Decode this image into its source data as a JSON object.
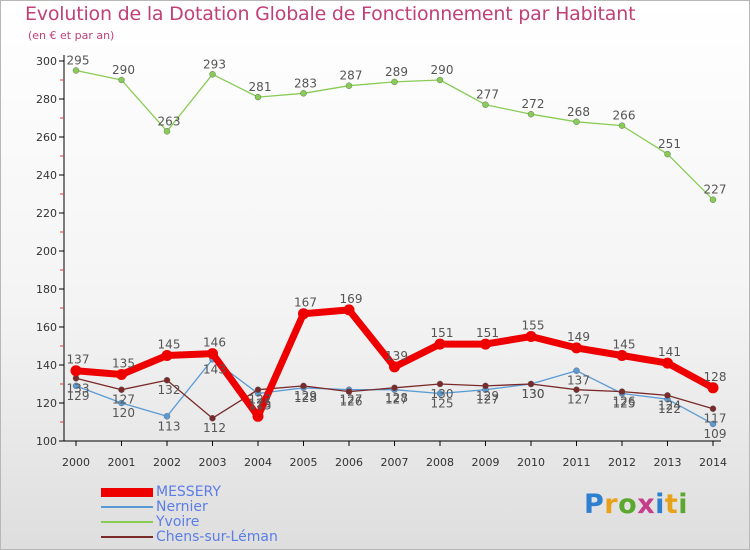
{
  "title": "Evolution de la Dotation Globale de Fonctionnement par Habitant",
  "subtitle": "(en € et par an)",
  "logo": {
    "text": "Proxiti",
    "colors": [
      "#2e7fd0",
      "#e8a21a",
      "#5aa82e",
      "#c63d8c",
      "#2e7fd0",
      "#e8a21a",
      "#5aa82e"
    ]
  },
  "chart_data": {
    "type": "line",
    "x": [
      "2000",
      "2001",
      "2002",
      "2003",
      "2004",
      "2005",
      "2006",
      "2007",
      "2008",
      "2009",
      "2010",
      "2011",
      "2012",
      "2013",
      "2014"
    ],
    "ylim": [
      100,
      300
    ],
    "yticks": [
      "100",
      "120",
      "140",
      "160",
      "180",
      "200",
      "220",
      "240",
      "260",
      "280",
      "300"
    ],
    "grid": false,
    "legend_position": "bottom-left",
    "series": [
      {
        "name": "Yvoire",
        "color": "#88cc55",
        "values": [
          295,
          290,
          263,
          293,
          281,
          283,
          287,
          289,
          290,
          277,
          272,
          268,
          266,
          251,
          227
        ]
      },
      {
        "name": "Nernier",
        "color": "#5b9bd5",
        "values": [
          129,
          120,
          113,
          143,
          125,
          128,
          127,
          127,
          125,
          127,
          130,
          137,
          125,
          122,
          109
        ]
      },
      {
        "name": "Chens-sur-Léman",
        "color": "#7a2a2a",
        "values": [
          133,
          127,
          132,
          112,
          127,
          129,
          126,
          128,
          130,
          129,
          130,
          127,
          126,
          124,
          117
        ]
      },
      {
        "name": "MESSERY",
        "color": "#ee0000",
        "values": [
          137,
          135,
          145,
          146,
          113,
          167,
          169,
          139,
          151,
          151,
          155,
          149,
          145,
          141,
          128
        ]
      }
    ],
    "legend_order": [
      "MESSERY",
      "Nernier",
      "Yvoire",
      "Chens-sur-Léman"
    ],
    "data_labels": [
      {
        "series": "Yvoire",
        "labels": [
          "295",
          "290",
          "263",
          "293",
          "281",
          "283",
          "287",
          "289",
          "290",
          "277",
          "272",
          "268",
          "266",
          "251",
          "227"
        ]
      },
      {
        "series": "MESSERY",
        "labels": [
          "137",
          "135",
          "145",
          "146",
          "113",
          "167",
          "169",
          "139",
          "151",
          "151",
          "155",
          "149",
          "145",
          "141",
          "128"
        ]
      },
      {
        "series": "Nernier",
        "labels": [
          "129",
          "120",
          "113",
          "143",
          "125",
          "128",
          "127",
          "127",
          "125",
          "127",
          "130",
          "137",
          "125",
          "122",
          "109"
        ]
      },
      {
        "series": "Chens-sur-Léman",
        "labels": [
          "133",
          "127",
          "132",
          "112",
          "127",
          "129",
          "126",
          "128",
          "130",
          "129",
          "130",
          "127",
          "126",
          "124",
          "117"
        ]
      }
    ]
  }
}
